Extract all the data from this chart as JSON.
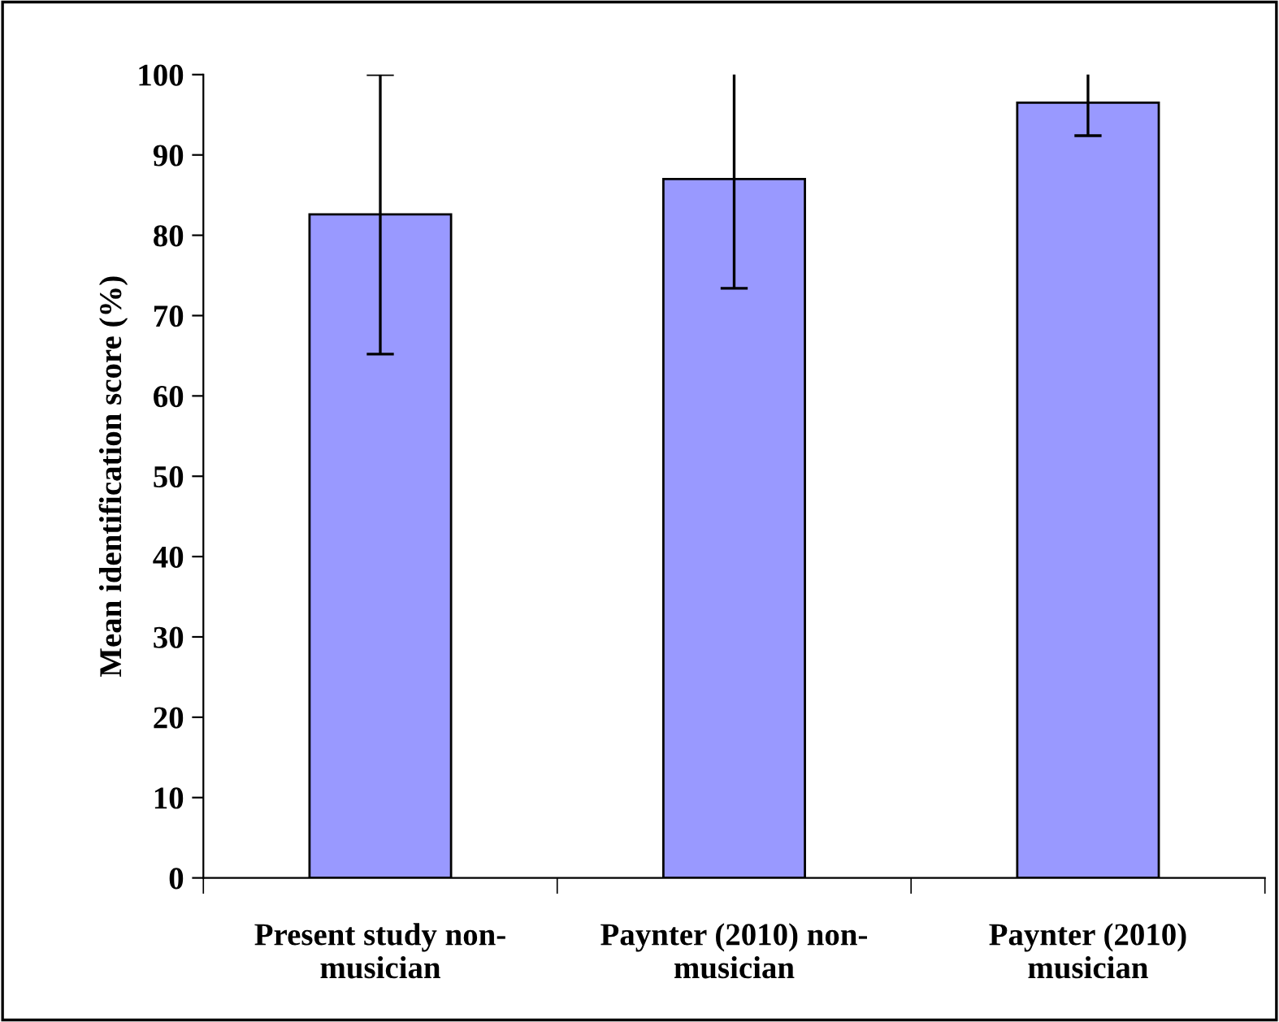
{
  "chart_data": {
    "type": "bar",
    "ylabel": "Mean identification score (%)",
    "categories": [
      "Present study non-\nmusician",
      "Paynter (2010) non-\nmusician",
      "Paynter (2010)\nmusician"
    ],
    "values": [
      82.6,
      87.0,
      96.5
    ],
    "errors": [
      17.4,
      13.6,
      4.1
    ],
    "color": "#9999ff",
    "ylim": [
      0,
      100
    ],
    "yticks": [
      0,
      10,
      20,
      30,
      40,
      50,
      60,
      70,
      80,
      90,
      100
    ],
    "grid": false,
    "legend": false
  }
}
